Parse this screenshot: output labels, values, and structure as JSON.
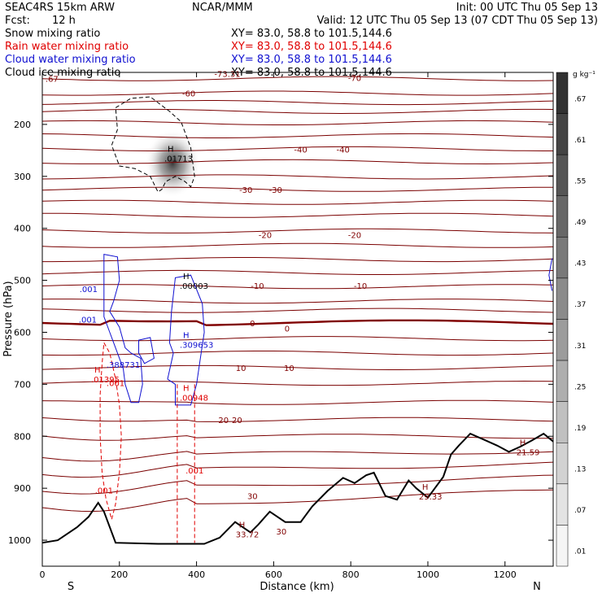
{
  "header": {
    "model": "SEAC4RS 15km ARW",
    "org": "NCAR/MMM",
    "init": "Init: 00 UTC Thu 05 Sep 13",
    "fcst_label": "Fcst:",
    "fcst_value": "12 h",
    "valid": "Valid: 12 UTC Thu 05 Sep 13 (07 CDT Thu 05 Sep 13)"
  },
  "fields": [
    {
      "name": "Snow mixing ratio",
      "xy": "XY=  83.0, 58.8 to 101.5,144.6",
      "color": "#000000"
    },
    {
      "name": "Rain water mixing ratio",
      "xy": "XY=  83.0, 58.8 to 101.5,144.6",
      "color": "#e00000"
    },
    {
      "name": "Cloud water mixing ratio",
      "xy": "XY=  83.0, 58.8 to 101.5,144.6",
      "color": "#1010d0"
    },
    {
      "name": "Cloud ice mixing ratio",
      "xy": "XY=  83.0, 58.8 to 101.5,144.6",
      "color": "#000000"
    }
  ],
  "chart_data": {
    "type": "contour",
    "xlabel": "Distance (km)",
    "ylabel": "Pressure (hPa)",
    "xlim": [
      0,
      1325
    ],
    "ylim": [
      1050,
      100
    ],
    "x_ticks": [
      0,
      200,
      400,
      600,
      800,
      1000,
      1200
    ],
    "y_ticks": [
      200,
      300,
      400,
      500,
      600,
      700,
      800,
      900,
      1000
    ],
    "left_end_label": "S",
    "right_end_label": "N",
    "temperature_contours": {
      "color": "#800000",
      "levels": [
        {
          "label": "-73.31",
          "x": 480,
          "p": 102
        },
        {
          "label": "-70",
          "x": 810,
          "p": 110
        },
        {
          "label": "-60",
          "x": 380,
          "p": 140
        },
        {
          "label": "-40",
          "x": 670,
          "p": 248
        },
        {
          "label": "-40",
          "x": 780,
          "p": 248
        },
        {
          "label": "-30",
          "x": 528,
          "p": 325
        },
        {
          "label": "-30",
          "x": 605,
          "p": 325
        },
        {
          "label": "-20",
          "x": 578,
          "p": 412
        },
        {
          "label": "-20",
          "x": 810,
          "p": 412
        },
        {
          "label": "-10",
          "x": 558,
          "p": 510
        },
        {
          "label": "-10",
          "x": 825,
          "p": 510
        },
        {
          "label": "0",
          "x": 545,
          "p": 582
        },
        {
          "label": "0",
          "x": 635,
          "p": 592
        },
        {
          "label": "10",
          "x": 515,
          "p": 668
        },
        {
          "label": "10",
          "x": 640,
          "p": 668
        },
        {
          "label": "20",
          "x": 470,
          "p": 768
        },
        {
          "label": "20",
          "x": 505,
          "p": 768
        },
        {
          "label": "30",
          "x": 545,
          "p": 915
        },
        {
          "label": "30",
          "x": 620,
          "p": 983
        }
      ]
    },
    "maxima": [
      {
        "label": "H",
        "value": ".01713",
        "x": 325,
        "p": 262,
        "color": "#000000"
      },
      {
        "label": "H",
        "value": ".00003",
        "x": 365,
        "p": 507,
        "color": "#000000"
      },
      {
        "label": "H",
        "value": ".309653",
        "x": 365,
        "p": 620,
        "color": "#1010d0"
      },
      {
        "label": "H",
        "value": ".01395",
        "x": 135,
        "p": 687,
        "color": "#e00000"
      },
      {
        "label": "H",
        "value": ".00948",
        "x": 365,
        "p": 722,
        "color": "#e00000"
      },
      {
        "label": "H",
        "value": "33.72",
        "x": 510,
        "p": 985,
        "color": "#800000"
      },
      {
        "label": "H",
        "value": "29.33",
        "x": 985,
        "p": 912,
        "color": "#800000"
      },
      {
        "label": "H",
        "value": "21.59",
        "x": 1238,
        "p": 827,
        "color": "#800000"
      }
    ],
    "contour_labels": [
      {
        "text": ".001",
        "x": 120,
        "p": 516,
        "color": "#1010d0"
      },
      {
        "text": ".001",
        "x": 118,
        "p": 575,
        "color": "#1010d0"
      },
      {
        "text": ".388731",
        "x": 210,
        "p": 662,
        "color": "#1010d0"
      },
      {
        "text": ".001",
        "x": 190,
        "p": 697,
        "color": "#e00000"
      },
      {
        "text": ".001",
        "x": 395,
        "p": 865,
        "color": "#e00000"
      },
      {
        "text": ".001",
        "x": 160,
        "p": 904,
        "color": "#e00000"
      },
      {
        "text": ".67",
        "x": 25,
        "p": 112,
        "color": "#800000"
      }
    ],
    "terrain_pressure": [
      {
        "x": 0,
        "p": 1005
      },
      {
        "x": 40,
        "p": 1000
      },
      {
        "x": 90,
        "p": 975
      },
      {
        "x": 120,
        "p": 955
      },
      {
        "x": 145,
        "p": 928
      },
      {
        "x": 160,
        "p": 945
      },
      {
        "x": 190,
        "p": 1005
      },
      {
        "x": 300,
        "p": 1007
      },
      {
        "x": 420,
        "p": 1007
      },
      {
        "x": 460,
        "p": 995
      },
      {
        "x": 500,
        "p": 965
      },
      {
        "x": 540,
        "p": 985
      },
      {
        "x": 560,
        "p": 970
      },
      {
        "x": 590,
        "p": 945
      },
      {
        "x": 630,
        "p": 965
      },
      {
        "x": 670,
        "p": 965
      },
      {
        "x": 700,
        "p": 935
      },
      {
        "x": 740,
        "p": 905
      },
      {
        "x": 780,
        "p": 880
      },
      {
        "x": 810,
        "p": 890
      },
      {
        "x": 840,
        "p": 875
      },
      {
        "x": 860,
        "p": 870
      },
      {
        "x": 890,
        "p": 915
      },
      {
        "x": 920,
        "p": 922
      },
      {
        "x": 950,
        "p": 885
      },
      {
        "x": 970,
        "p": 900
      },
      {
        "x": 1000,
        "p": 918
      },
      {
        "x": 1040,
        "p": 878
      },
      {
        "x": 1060,
        "p": 835
      },
      {
        "x": 1080,
        "p": 818
      },
      {
        "x": 1110,
        "p": 795
      },
      {
        "x": 1150,
        "p": 808
      },
      {
        "x": 1180,
        "p": 818
      },
      {
        "x": 1210,
        "p": 830
      },
      {
        "x": 1240,
        "p": 820
      },
      {
        "x": 1270,
        "p": 808
      },
      {
        "x": 1300,
        "p": 795
      },
      {
        "x": 1325,
        "p": 810
      }
    ],
    "colorbar": {
      "unit": "g kg⁻¹",
      "labels": [
        ".67",
        ".61",
        ".55",
        ".49",
        ".43",
        ".37",
        ".31",
        ".25",
        ".19",
        ".13",
        ".07",
        ".01"
      ]
    }
  }
}
